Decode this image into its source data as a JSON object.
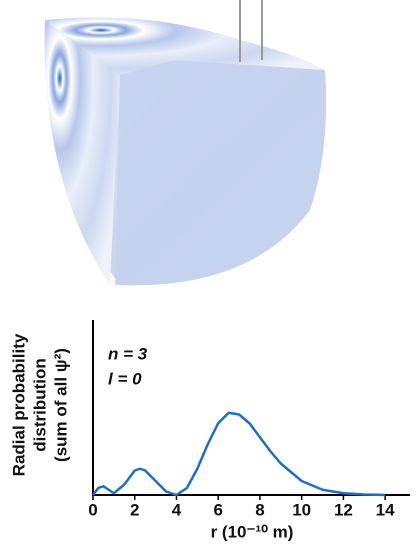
{
  "chart_data": {
    "type": "line",
    "ylabel": [
      "Radial probability",
      "distribution",
      "(sum of all ψ²)"
    ],
    "xlabel": "r (10⁻¹⁰ m)",
    "annotations": [
      "n = 3",
      "l = 0"
    ],
    "xlim": [
      0,
      15
    ],
    "ylim": [
      0,
      1
    ],
    "xticks": [
      0,
      2,
      4,
      6,
      8,
      10,
      12,
      14
    ],
    "series": [
      {
        "color": "#1f6fc0",
        "x": [
          0,
          0.25,
          0.5,
          0.75,
          1,
          1.5,
          2,
          2.25,
          2.5,
          3,
          3.5,
          4,
          4.5,
          5,
          5.5,
          6,
          6.5,
          7,
          7.5,
          8,
          8.5,
          9,
          10,
          11,
          12,
          13,
          14
        ],
        "values": [
          0,
          0.04,
          0.05,
          0.03,
          0.01,
          0.06,
          0.14,
          0.15,
          0.14,
          0.08,
          0.02,
          0,
          0.04,
          0.15,
          0.29,
          0.41,
          0.47,
          0.46,
          0.41,
          0.33,
          0.25,
          0.18,
          0.08,
          0.03,
          0.01,
          0.003,
          0
        ]
      }
    ]
  }
}
